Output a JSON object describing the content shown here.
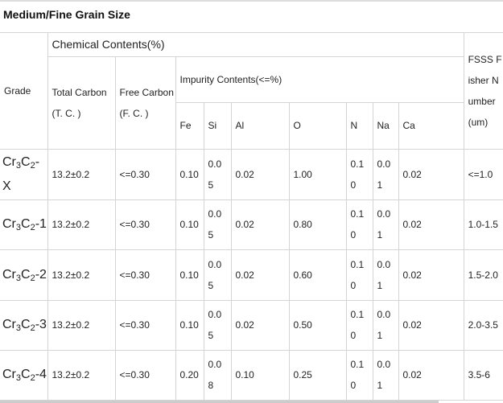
{
  "title": "Medium/Fine Grain Size",
  "headers": {
    "grade": "Grade",
    "chemical": "Chemical Contents(%)",
    "fsss": "FSSS Fisher Number (um)",
    "total_carbon": "Total Carbon",
    "total_carbon_abbr": "(T. C. )",
    "free_carbon": "Free Carbon",
    "free_carbon_abbr": "(F. C. )",
    "impurity": "Impurity Contents(<=%)",
    "fe": "Fe",
    "si": "Si",
    "al": "Al",
    "o": "O",
    "n": "N",
    "na": "Na",
    "ca": "Ca"
  },
  "rows": [
    {
      "grade_base": "Cr",
      "s1": "3",
      "mid": "C",
      "s2": "2",
      "suffix": "-X",
      "tc": "13.2±0.2",
      "fc": "<=0.30",
      "fe": "0.10",
      "si": "0.05",
      "al": "0.02",
      "o": "1.00",
      "n": "0.10",
      "na": "0.01",
      "ca": "0.02",
      "fsss": "<=1.0"
    },
    {
      "grade_base": "Cr",
      "s1": "3",
      "mid": "C",
      "s2": "2",
      "suffix": "-1",
      "tc": "13.2±0.2",
      "fc": "<=0.30",
      "fe": "0.10",
      "si": "0.05",
      "al": "0.02",
      "o": "0.80",
      "n": "0.10",
      "na": "0.01",
      "ca": "0.02",
      "fsss": "1.0-1.5"
    },
    {
      "grade_base": "Cr",
      "s1": "3",
      "mid": "C",
      "s2": "2",
      "suffix": "-2",
      "tc": "13.2±0.2",
      "fc": "<=0.30",
      "fe": "0.10",
      "si": "0.05",
      "al": "0.02",
      "o": "0.60",
      "n": "0.10",
      "na": "0.01",
      "ca": "0.02",
      "fsss": "1.5-2.0"
    },
    {
      "grade_base": "Cr",
      "s1": "3",
      "mid": "C",
      "s2": "2",
      "suffix": "-3",
      "tc": "13.2±0.2",
      "fc": "<=0.30",
      "fe": "0.10",
      "si": "0.05",
      "al": "0.02",
      "o": "0.50",
      "n": "0.10",
      "na": "0.01",
      "ca": "0.02",
      "fsss": "2.0-3.5"
    },
    {
      "grade_base": "Cr",
      "s1": "3",
      "mid": "C",
      "s2": "2",
      "suffix": "-4",
      "tc": "13.2±0.2",
      "fc": "<=0.30",
      "fe": "0.20",
      "si": "0.08",
      "al": "0.10",
      "o": "0.25",
      "n": "0.10",
      "na": "0.01",
      "ca": "0.02",
      "fsss": "3.5-6"
    }
  ]
}
